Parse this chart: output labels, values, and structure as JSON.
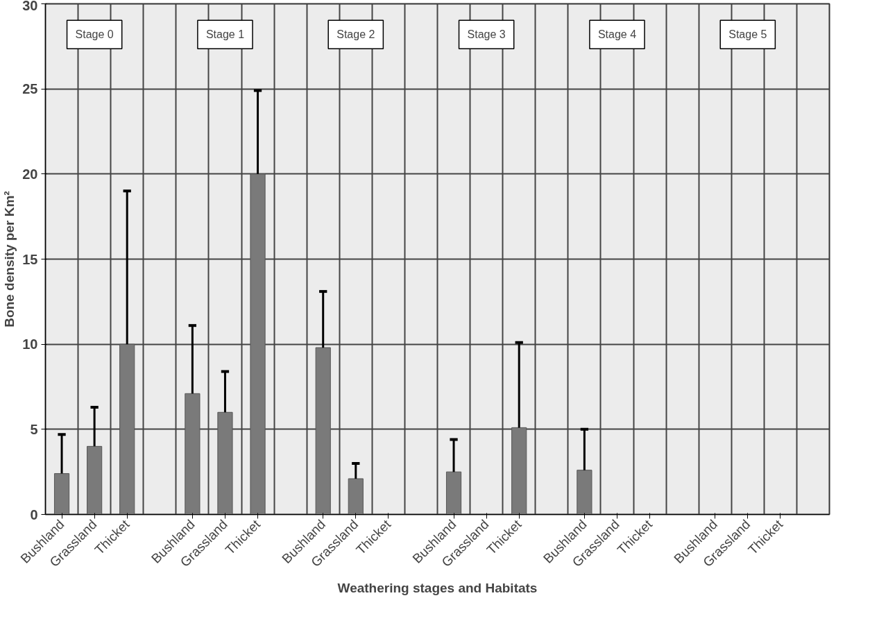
{
  "chart_data": {
    "type": "bar",
    "xlabel": "Weathering stages and Habitats",
    "ylabel": "Bone density per Km²",
    "categories": [
      "Bushland",
      "Grassland",
      "Thicket",
      "Bushland",
      "Grassland",
      "Thicket",
      "Bushland",
      "Grassland",
      "Thicket",
      "Bushland",
      "Grassland",
      "Thicket",
      "Bushland",
      "Grassland",
      "Thicket",
      "Bushland",
      "Grassland",
      "Thicket"
    ],
    "values": [
      2.4,
      4.0,
      10.0,
      7.1,
      6.0,
      20.0,
      9.8,
      2.1,
      null,
      2.5,
      null,
      5.1,
      2.6,
      null,
      null,
      null,
      null,
      null
    ],
    "errors": [
      [
        2.4,
        4.7
      ],
      [
        4.0,
        6.3
      ],
      [
        10.0,
        19.0
      ],
      [
        7.1,
        11.1
      ],
      [
        6.0,
        8.4
      ],
      [
        20.0,
        24.9
      ],
      [
        9.8,
        13.1
      ],
      [
        2.1,
        3.0
      ],
      null,
      [
        2.5,
        4.4
      ],
      null,
      [
        5.1,
        10.1
      ],
      [
        2.6,
        5.0
      ],
      null,
      null,
      null,
      null,
      null
    ],
    "color": "#7a7a7a",
    "ylim": [
      0,
      30
    ],
    "yticks": [
      0,
      5,
      10,
      15,
      20,
      25,
      30
    ],
    "grid": true,
    "annotations": [
      "Stage 0",
      "Stage 1",
      "Stage 2",
      "Stage 3",
      "Stage 4",
      "Stage 5"
    ]
  }
}
